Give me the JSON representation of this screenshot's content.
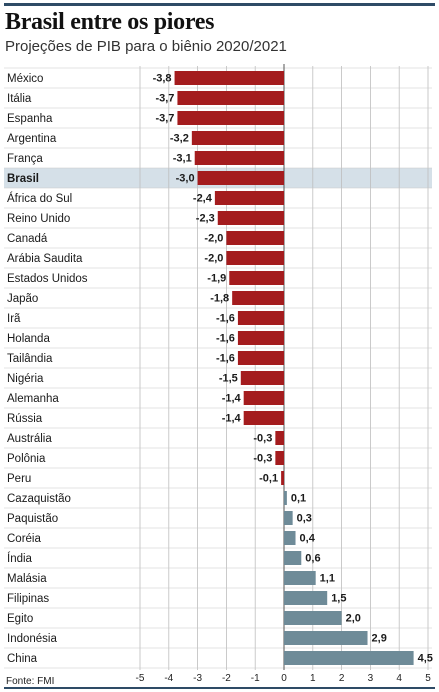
{
  "header": {
    "title": "Brasil entre os piores",
    "subtitle": "Projeções de PIB para o biênio 2020/2021"
  },
  "footer": {
    "source": "Fonte: FMI"
  },
  "colors": {
    "negative": "#a41c1e",
    "positive": "#6e8b98",
    "highlight_row": "#d5e0e8",
    "grid": "#bdbdbd",
    "rule": "#2e4b66"
  },
  "chart_data": {
    "type": "bar",
    "orientation": "horizontal",
    "title": "Brasil entre os piores",
    "subtitle": "Projeções de PIB para o biênio 2020/2021",
    "highlight": "Brasil",
    "categories": [
      "México",
      "Itália",
      "Espanha",
      "Argentina",
      "França",
      "Brasil",
      "África do Sul",
      "Reino Unido",
      "Canadá",
      "Arábia Saudita",
      "Estados Unidos",
      "Japão",
      "Irã",
      "Holanda",
      "Tailândia",
      "Nigéria",
      "Alemanha",
      "Rússia",
      "Austrália",
      "Polônia",
      "Peru",
      "Cazaquistão",
      "Paquistão",
      "Coréia",
      "Índia",
      "Malásia",
      "Filipinas",
      "Egito",
      "Indonésia",
      "China"
    ],
    "values": [
      -3.8,
      -3.7,
      -3.7,
      -3.2,
      -3.1,
      -3.0,
      -2.4,
      -2.3,
      -2.0,
      -2.0,
      -1.9,
      -1.8,
      -1.6,
      -1.6,
      -1.6,
      -1.5,
      -1.4,
      -1.4,
      -0.3,
      -0.3,
      -0.1,
      0.1,
      0.3,
      0.4,
      0.6,
      1.1,
      1.5,
      2.0,
      2.9,
      4.5
    ],
    "value_labels": [
      "-3,8",
      "-3,7",
      "-3,7",
      "-3,2",
      "-3,1",
      "-3,0",
      "-2,4",
      "-2,3",
      "-2,0",
      "-2,0",
      "-1,9",
      "-1,8",
      "-1,6",
      "-1,6",
      "-1,6",
      "-1,5",
      "-1,4",
      "-1,4",
      "-0,3",
      "-0,3",
      "-0,1",
      "0,1",
      "0,3",
      "0,4",
      "0,6",
      "1,1",
      "1,5",
      "2,0",
      "2,9",
      "4,5"
    ],
    "xlim": [
      -5,
      5
    ],
    "xticks": [
      -5,
      -4,
      -3,
      -2,
      -1,
      0,
      1,
      2,
      3,
      4,
      5
    ],
    "xtick_labels": [
      "-5",
      "-4",
      "-3",
      "-2",
      "-1",
      "0",
      "1",
      "2",
      "3",
      "4",
      "5"
    ],
    "grid": "vertical",
    "legend": "none"
  }
}
